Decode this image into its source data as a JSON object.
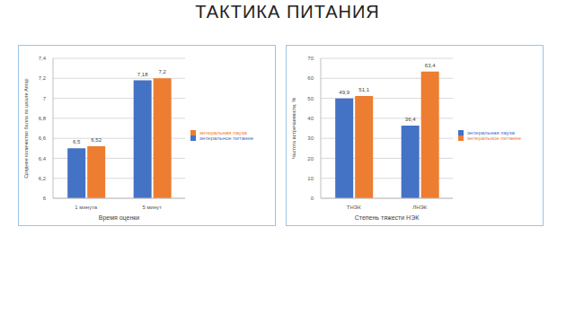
{
  "title": "ТАКТИКА ПИТАНИЯ",
  "chart_data": [
    {
      "type": "bar",
      "categories": [
        "1 минута",
        "5 минут"
      ],
      "x_label": "Время оценки",
      "y_label": "Среднее количество балла по шкале Апгар",
      "series": [
        {
          "name": "энтеральное питание",
          "color": "#4472c4",
          "values": [
            6.5,
            7.18
          ],
          "value_labels": [
            "6,5",
            "7,18"
          ]
        },
        {
          "name": "энтеральная пауза",
          "color": "#ed7d31",
          "values": [
            6.52,
            7.2
          ],
          "value_labels": [
            "6,52",
            "7,2"
          ]
        }
      ],
      "ylim": [
        6,
        7.4
      ],
      "yticks": [
        6,
        {
          "value": 6.2,
          "label": "6,2"
        },
        {
          "value": 6.4,
          "label": "6,4"
        },
        {
          "value": 6.6,
          "label": "6,6"
        },
        {
          "value": 6.8,
          "label": "6,8"
        },
        7,
        {
          "value": 7.2,
          "label": "7,2"
        },
        {
          "value": 7.4,
          "label": "7,4"
        }
      ],
      "grid": true,
      "legend": "right",
      "data_labels": true
    },
    {
      "type": "bar",
      "categories": [
        "ТНЭК",
        "ЛНЭК"
      ],
      "x_label": "Степень тяжести НЭК",
      "y_label": "Частота встречаемости, %",
      "series": [
        {
          "name": "энтеральная пауза",
          "color": "#4472c4",
          "values": [
            49.9,
            36.4
          ],
          "value_labels": [
            "49,9",
            "36,4"
          ]
        },
        {
          "name": "энтеральное питание",
          "color": "#ed7d31",
          "values": [
            51.1,
            63.4
          ],
          "value_labels": [
            "51,1",
            "63,4"
          ]
        }
      ],
      "ylim": [
        0,
        70
      ],
      "yticks": [
        0,
        10,
        20,
        30,
        40,
        50,
        60,
        70
      ],
      "grid": true,
      "legend": "right",
      "data_labels": true
    }
  ]
}
